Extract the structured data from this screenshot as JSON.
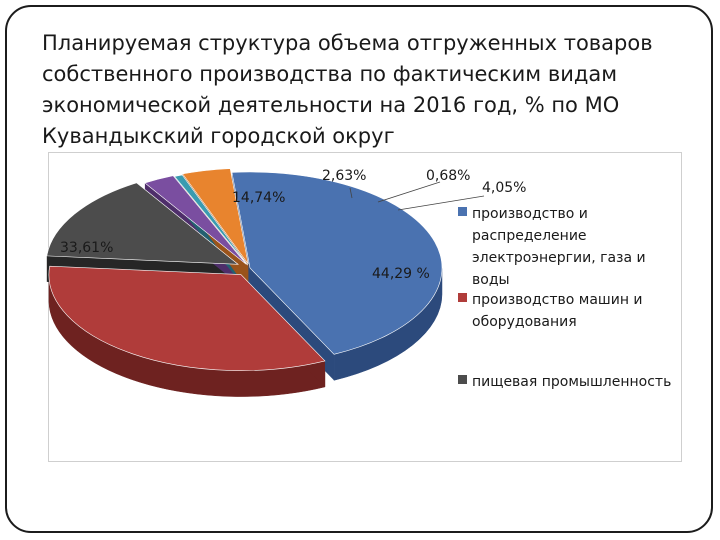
{
  "title": "Планируемая структура объема отгруженных товаров собственного производства по фактическим видам экономической деятельности на 2016 год, % по МО Кувандыкский городской округ",
  "chart_data": {
    "type": "pie",
    "slices": [
      {
        "name": "производство и распределение электроэнергии, газа и воды",
        "value": 44.29,
        "label": "44,29 %",
        "color": "#4a72b0",
        "side": "#2c4a7c"
      },
      {
        "name": "производство машин и оборудования",
        "value": 33.61,
        "label": "33,61%",
        "color": "#b03c3a",
        "side": "#6e2220"
      },
      {
        "name": "пищевая промышленность",
        "value": 14.74,
        "label": "14,74%",
        "color": "#4c4c4c",
        "side": "#262626"
      },
      {
        "name": "",
        "value": 2.63,
        "label": "2,63%",
        "color": "#7a4ea0",
        "side": "#4e2e6a"
      },
      {
        "name": "",
        "value": 0.68,
        "label": "0,68%",
        "color": "#3a9bb0",
        "side": "#236070"
      },
      {
        "name": "",
        "value": 4.05,
        "label": "4,05%",
        "color": "#e8842e",
        "side": "#9a531a"
      }
    ],
    "legend": [
      {
        "text": "производство и распределение электроэнергии, газа и воды",
        "color": "#4a72b0"
      },
      {
        "text": "производство машин и оборудования",
        "color": "#b03c3a"
      },
      {
        "text": "пищевая промышленность",
        "color": "#4c4c4c"
      }
    ]
  }
}
